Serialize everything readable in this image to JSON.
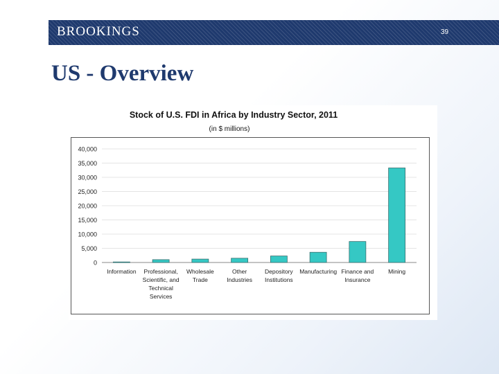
{
  "header": {
    "brand": "BROOKINGS",
    "slide_number": "39"
  },
  "slide_title": "US - Overview",
  "chart_data": {
    "type": "bar",
    "title": "Stock of U.S. FDI in Africa by Industry Sector, 2011",
    "subtitle": "(in $ millions)",
    "categories": [
      [
        "Information"
      ],
      [
        "Professional,",
        "Scientific, and",
        "Technical",
        "Services"
      ],
      [
        "Wholesale",
        "Trade"
      ],
      [
        "Other",
        "Industries"
      ],
      [
        "Depository",
        "Institutions"
      ],
      [
        "Manufacturing"
      ],
      [
        "Finance and",
        "Insurance"
      ],
      [
        "Mining"
      ]
    ],
    "values": [
      200,
      1000,
      1200,
      1500,
      2300,
      3600,
      7400,
      33300
    ],
    "ylim": [
      0,
      40000
    ],
    "yticks": [
      "0",
      "5,000",
      "10,000",
      "15,000",
      "20,000",
      "25,000",
      "30,000",
      "35,000",
      "40,000"
    ],
    "ytick_values": [
      0,
      5000,
      10000,
      15000,
      20000,
      25000,
      30000,
      35000,
      40000
    ],
    "bar_color": "#35c8c4",
    "bar_edge": "#3a6f6f",
    "grid": true,
    "grid_color": "#e4e4e4"
  }
}
